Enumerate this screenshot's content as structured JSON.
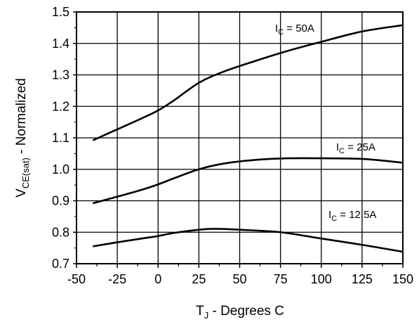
{
  "chart_data": {
    "type": "line",
    "xlabel": {
      "main": "T",
      "sub": "J",
      "rest": " - Degrees C"
    },
    "ylabel": {
      "main": "V",
      "sub": "CE(sat)",
      "rest": " - Normalized"
    },
    "xlim": [
      -50,
      150
    ],
    "ylim": [
      0.7,
      1.5
    ],
    "xticks": [
      -50,
      -25,
      0,
      25,
      50,
      75,
      100,
      125,
      150
    ],
    "xtick_labels": [
      "-50",
      "-25",
      "0",
      "25",
      "50",
      "75",
      "100",
      "125",
      "150"
    ],
    "yticks": [
      0.7,
      0.8,
      0.9,
      1.0,
      1.1,
      1.2,
      1.3,
      1.4,
      1.5
    ],
    "ytick_labels": [
      "0.7",
      "0.8",
      "0.9",
      "1.0",
      "1.1",
      "1.2",
      "1.3",
      "1.4",
      "1.5"
    ],
    "grid": true,
    "series": [
      {
        "name": "I_C = 50A",
        "label": {
          "main": "I",
          "sub": "C",
          "rest": " = 50A"
        },
        "x": [
          -40,
          -25,
          -10,
          0,
          10,
          25,
          40,
          60,
          80,
          100,
          125,
          150
        ],
        "y": [
          1.092,
          1.127,
          1.162,
          1.187,
          1.22,
          1.275,
          1.31,
          1.345,
          1.377,
          1.405,
          1.438,
          1.458
        ]
      },
      {
        "name": "I_C = 25A",
        "label": {
          "main": "I",
          "sub": "C",
          "rest": " = 25A"
        },
        "x": [
          -40,
          -25,
          -10,
          0,
          10,
          25,
          40,
          60,
          80,
          100,
          125,
          150
        ],
        "y": [
          0.892,
          0.913,
          0.935,
          0.952,
          0.972,
          1.0,
          1.018,
          1.03,
          1.035,
          1.035,
          1.033,
          1.021
        ]
      },
      {
        "name": "I_C = 12.5A",
        "label": {
          "main": "I",
          "sub": "C",
          "rest": " = 12.5A"
        },
        "x": [
          -40,
          -25,
          -10,
          0,
          10,
          25,
          35,
          50,
          75,
          100,
          125,
          150
        ],
        "y": [
          0.755,
          0.768,
          0.78,
          0.788,
          0.798,
          0.808,
          0.811,
          0.808,
          0.8,
          0.78,
          0.76,
          0.738
        ]
      }
    ]
  }
}
